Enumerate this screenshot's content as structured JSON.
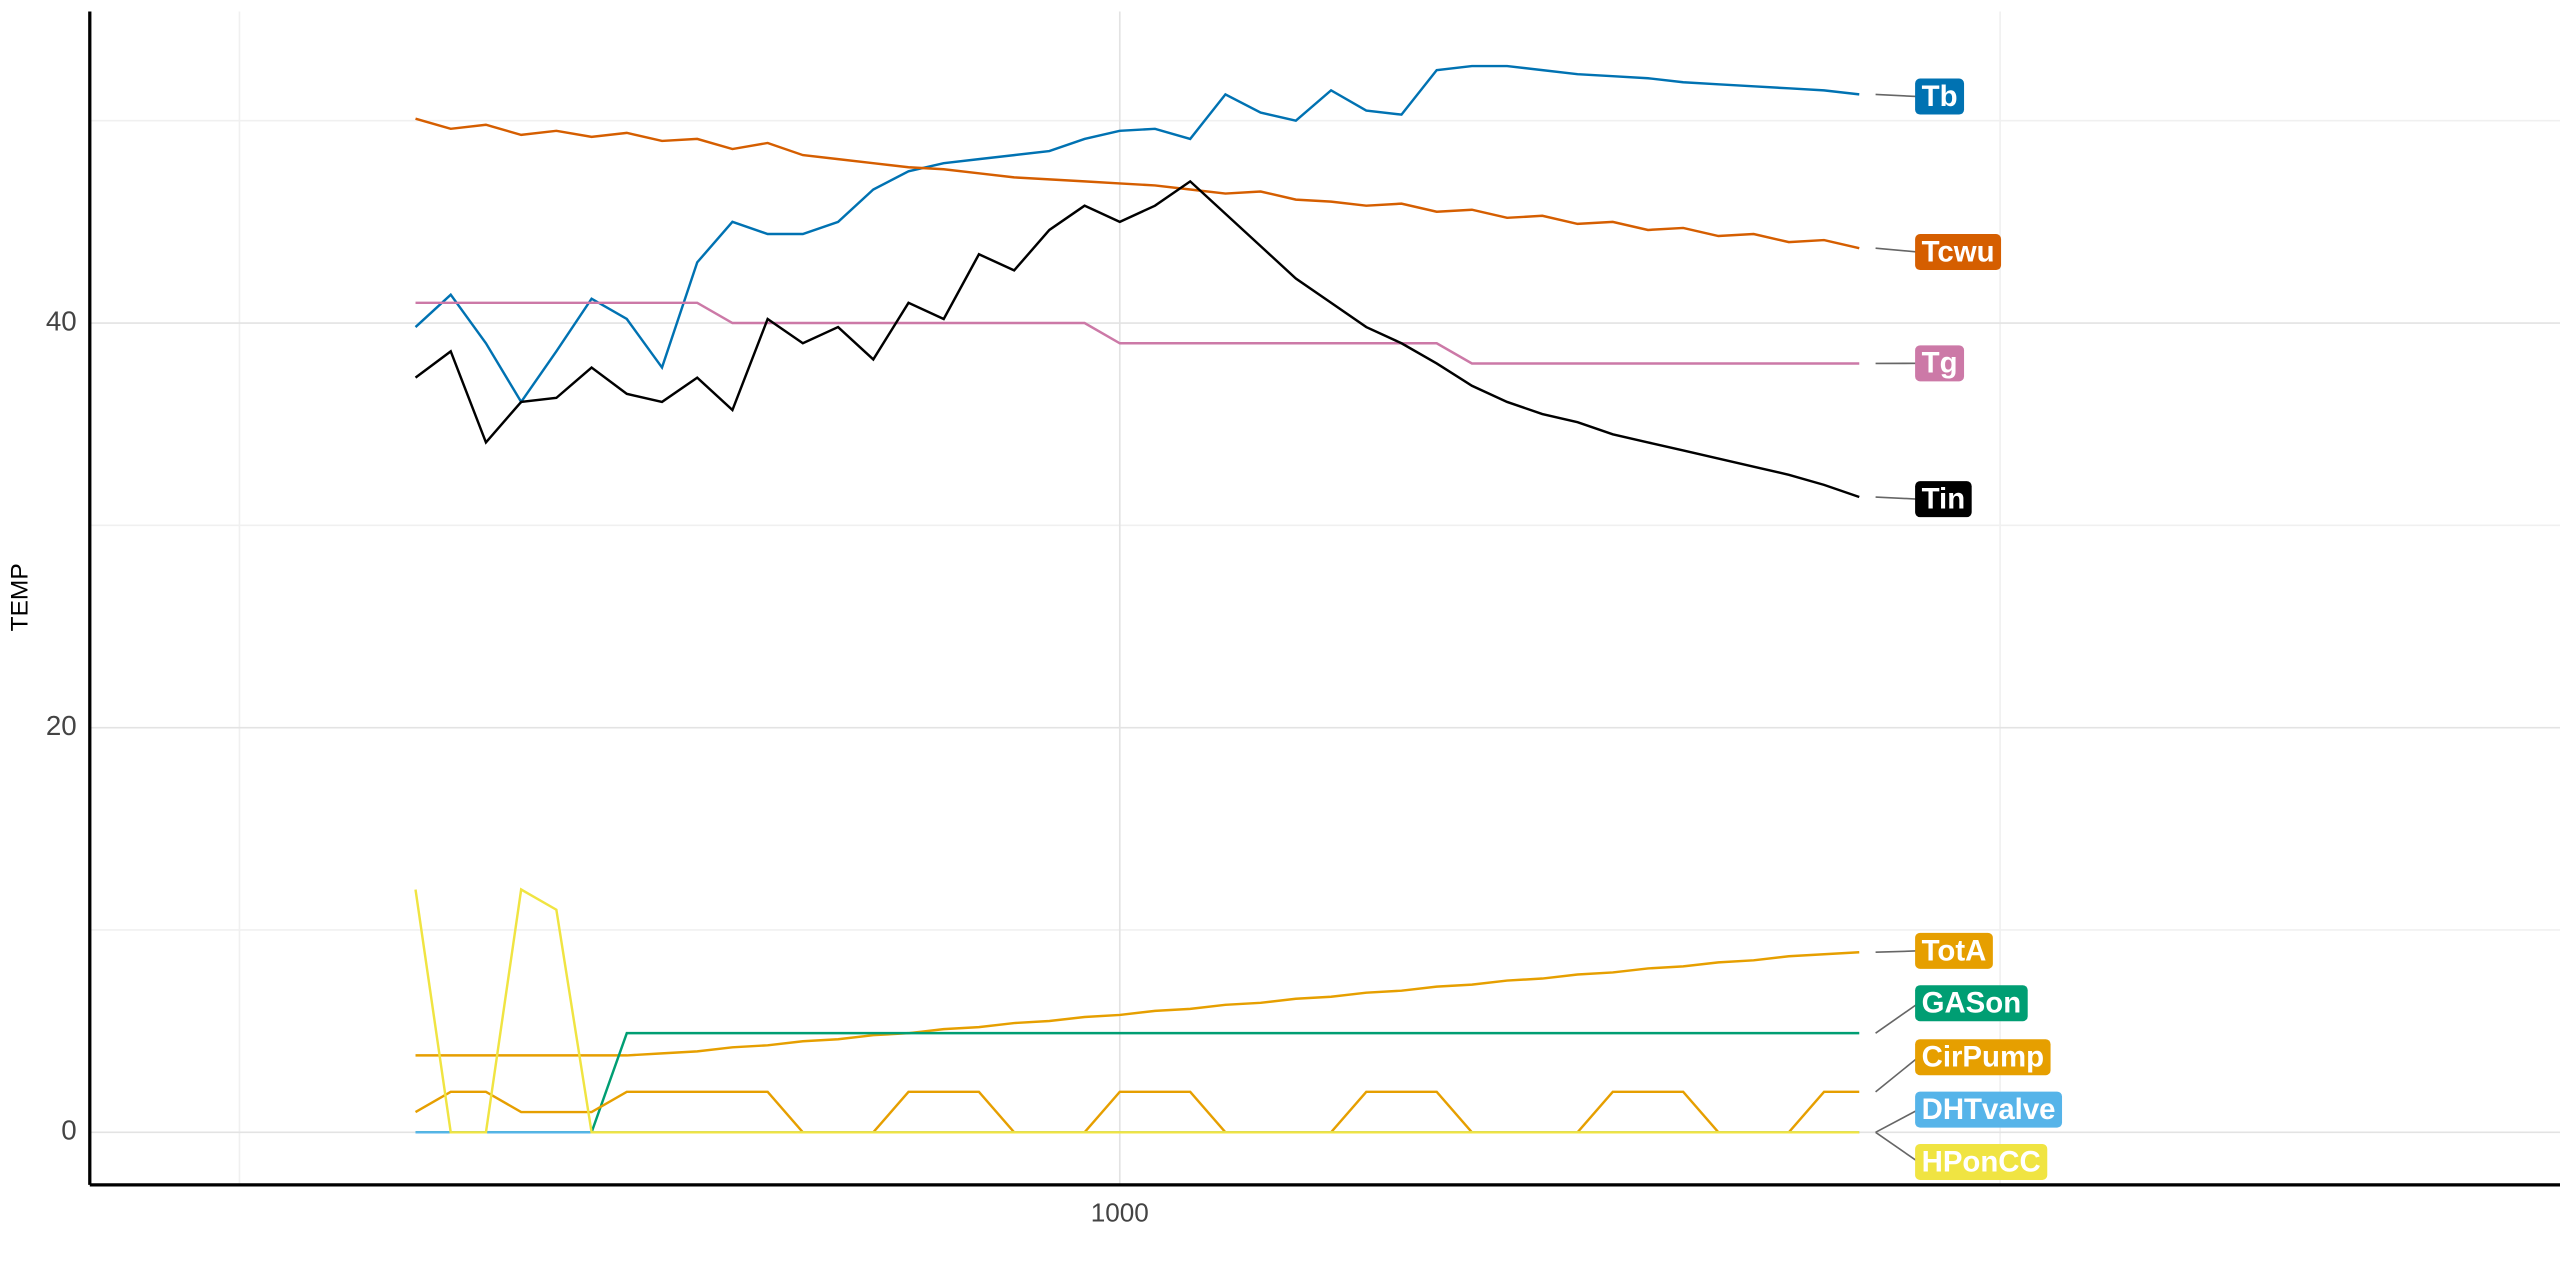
{
  "chart_data": {
    "type": "line",
    "y_label": "TEMP",
    "xlim": [
      415,
      1818
    ],
    "ylim": [
      -2.6,
      55.4
    ],
    "xticks": [
      1000
    ],
    "yticks": [
      0,
      20,
      40
    ],
    "xminor": [
      500,
      1500
    ],
    "yminor": [
      10,
      30,
      50
    ],
    "grid": true,
    "x": [
      600,
      620,
      640,
      660,
      680,
      700,
      720,
      740,
      760,
      780,
      800,
      820,
      840,
      860,
      880,
      900,
      920,
      940,
      960,
      980,
      1000,
      1020,
      1040,
      1060,
      1080,
      1100,
      1120,
      1140,
      1160,
      1180,
      1200,
      1220,
      1240,
      1260,
      1280,
      1300,
      1320,
      1340,
      1360,
      1380,
      1400,
      1420
    ],
    "series": [
      {
        "name": "Tb",
        "color": "#0072B2",
        "values": [
          39.8,
          41.4,
          39,
          36.1,
          38.6,
          41.2,
          40.2,
          37.8,
          43,
          45,
          44.4,
          44.4,
          45,
          46.6,
          47.5,
          47.9,
          48.1,
          48.3,
          48.5,
          49.1,
          49.5,
          49.6,
          49.1,
          51.3,
          50.4,
          50,
          51.5,
          50.5,
          50.3,
          52.5,
          52.7,
          52.7,
          52.5,
          52.3,
          52.2,
          52.1,
          51.9,
          51.8,
          51.7,
          51.6,
          51.5,
          51.3
        ]
      },
      {
        "name": "Tcwu",
        "color": "#D55E00",
        "values": [
          50.1,
          49.6,
          49.8,
          49.3,
          49.5,
          49.2,
          49.4,
          49.0,
          49.1,
          48.6,
          48.9,
          48.3,
          48.1,
          47.9,
          47.7,
          47.6,
          47.4,
          47.2,
          47.1,
          47.0,
          46.9,
          46.8,
          46.6,
          46.4,
          46.5,
          46.1,
          46.0,
          45.8,
          45.9,
          45.5,
          45.6,
          45.2,
          45.3,
          44.9,
          45.0,
          44.6,
          44.7,
          44.3,
          44.4,
          44.0,
          44.1,
          43.7
        ]
      },
      {
        "name": "Tg",
        "color": "#CC79A7",
        "values": [
          41,
          41,
          41,
          41,
          41,
          41,
          41,
          41,
          41,
          40,
          40,
          40,
          40,
          40,
          40,
          40,
          40,
          40,
          40,
          40,
          39,
          39,
          39,
          39,
          39,
          39,
          39,
          39,
          39,
          39,
          38,
          38,
          38,
          38,
          38,
          38,
          38,
          38,
          38,
          38,
          38,
          38
        ]
      },
      {
        "name": "Tin",
        "color": "#000000",
        "values": [
          37.3,
          38.6,
          34.1,
          36.1,
          36.3,
          37.8,
          36.5,
          36.1,
          37.3,
          35.7,
          40.2,
          39,
          39.8,
          38.2,
          41,
          40.2,
          43.4,
          42.6,
          44.6,
          45.8,
          45,
          45.8,
          47,
          45.4,
          43.8,
          42.2,
          41,
          39.8,
          39,
          38,
          36.9,
          36.1,
          35.5,
          35.1,
          34.5,
          34.1,
          33.7,
          33.3,
          32.9,
          32.5,
          32,
          31.4
        ]
      },
      {
        "name": "TotA",
        "color": "#E69F00",
        "values": [
          3.8,
          3.8,
          3.8,
          3.8,
          3.8,
          3.8,
          3.8,
          3.9,
          4.0,
          4.2,
          4.3,
          4.5,
          4.6,
          4.8,
          4.9,
          5.1,
          5.2,
          5.4,
          5.5,
          5.7,
          5.8,
          6.0,
          6.1,
          6.3,
          6.4,
          6.6,
          6.7,
          6.9,
          7.0,
          7.2,
          7.3,
          7.5,
          7.6,
          7.8,
          7.9,
          8.1,
          8.2,
          8.4,
          8.5,
          8.7,
          8.8,
          8.9
        ]
      },
      {
        "name": "GASon",
        "color": "#009E73",
        "values": [
          0,
          0,
          0,
          0,
          0,
          0,
          4.9,
          4.9,
          4.9,
          4.9,
          4.9,
          4.9,
          4.9,
          4.9,
          4.9,
          4.9,
          4.9,
          4.9,
          4.9,
          4.9,
          4.9,
          4.9,
          4.9,
          4.9,
          4.9,
          4.9,
          4.9,
          4.9,
          4.9,
          4.9,
          4.9,
          4.9,
          4.9,
          4.9,
          4.9,
          4.9,
          4.9,
          4.9,
          4.9,
          4.9,
          4.9,
          4.9
        ]
      },
      {
        "name": "CirPump",
        "color": "#E69F00",
        "values": [
          1,
          2,
          2,
          1,
          1,
          1,
          2,
          2,
          2,
          2,
          2,
          0,
          0,
          0,
          2,
          2,
          2,
          0,
          0,
          0,
          2,
          2,
          2,
          0,
          0,
          0,
          0,
          2,
          2,
          2,
          0,
          0,
          0,
          0,
          2,
          2,
          2,
          0,
          0,
          0,
          2,
          2
        ]
      },
      {
        "name": "DHTvalve",
        "color": "#56B4E9",
        "values": [
          0,
          0,
          0,
          0,
          0,
          0,
          0,
          0,
          0,
          0,
          0,
          0,
          0,
          0,
          0,
          0,
          0,
          0,
          0,
          0,
          0,
          0,
          0,
          0,
          0,
          0,
          0,
          0,
          0,
          0,
          0,
          0,
          0,
          0,
          0,
          0,
          0,
          0,
          0,
          0,
          0,
          0
        ]
      },
      {
        "name": "HPonCC",
        "color": "#F0E442",
        "values": [
          12,
          0,
          0,
          12,
          11,
          0,
          0,
          0,
          0,
          0,
          0,
          0,
          0,
          0,
          0,
          0,
          0,
          0,
          0,
          0,
          0,
          0,
          0,
          0,
          0,
          0,
          0,
          0,
          0,
          0,
          0,
          0,
          0,
          0,
          0,
          0,
          0,
          0,
          0,
          0,
          0,
          0
        ]
      }
    ]
  }
}
